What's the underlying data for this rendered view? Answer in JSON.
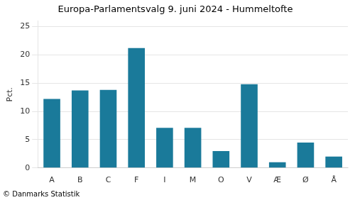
{
  "chart_data": {
    "type": "bar",
    "title": "Europa-Parlamentsvalg 9. juni 2024 - Hummeltofte",
    "categories": [
      "A",
      "B",
      "C",
      "F",
      "I",
      "M",
      "O",
      "V",
      "Æ",
      "Ø",
      "Å"
    ],
    "values": [
      12.2,
      13.7,
      13.8,
      21.2,
      7.1,
      7.1,
      3.0,
      14.8,
      1.0,
      4.5,
      2.0
    ],
    "color": "#1a7a9a",
    "ylabel": "Pct.",
    "ylim": [
      0,
      26
    ],
    "yticks": [
      0,
      5,
      10,
      15,
      20,
      25
    ],
    "grid": true,
    "annotations": [
      "© Danmarks Statistik"
    ]
  }
}
